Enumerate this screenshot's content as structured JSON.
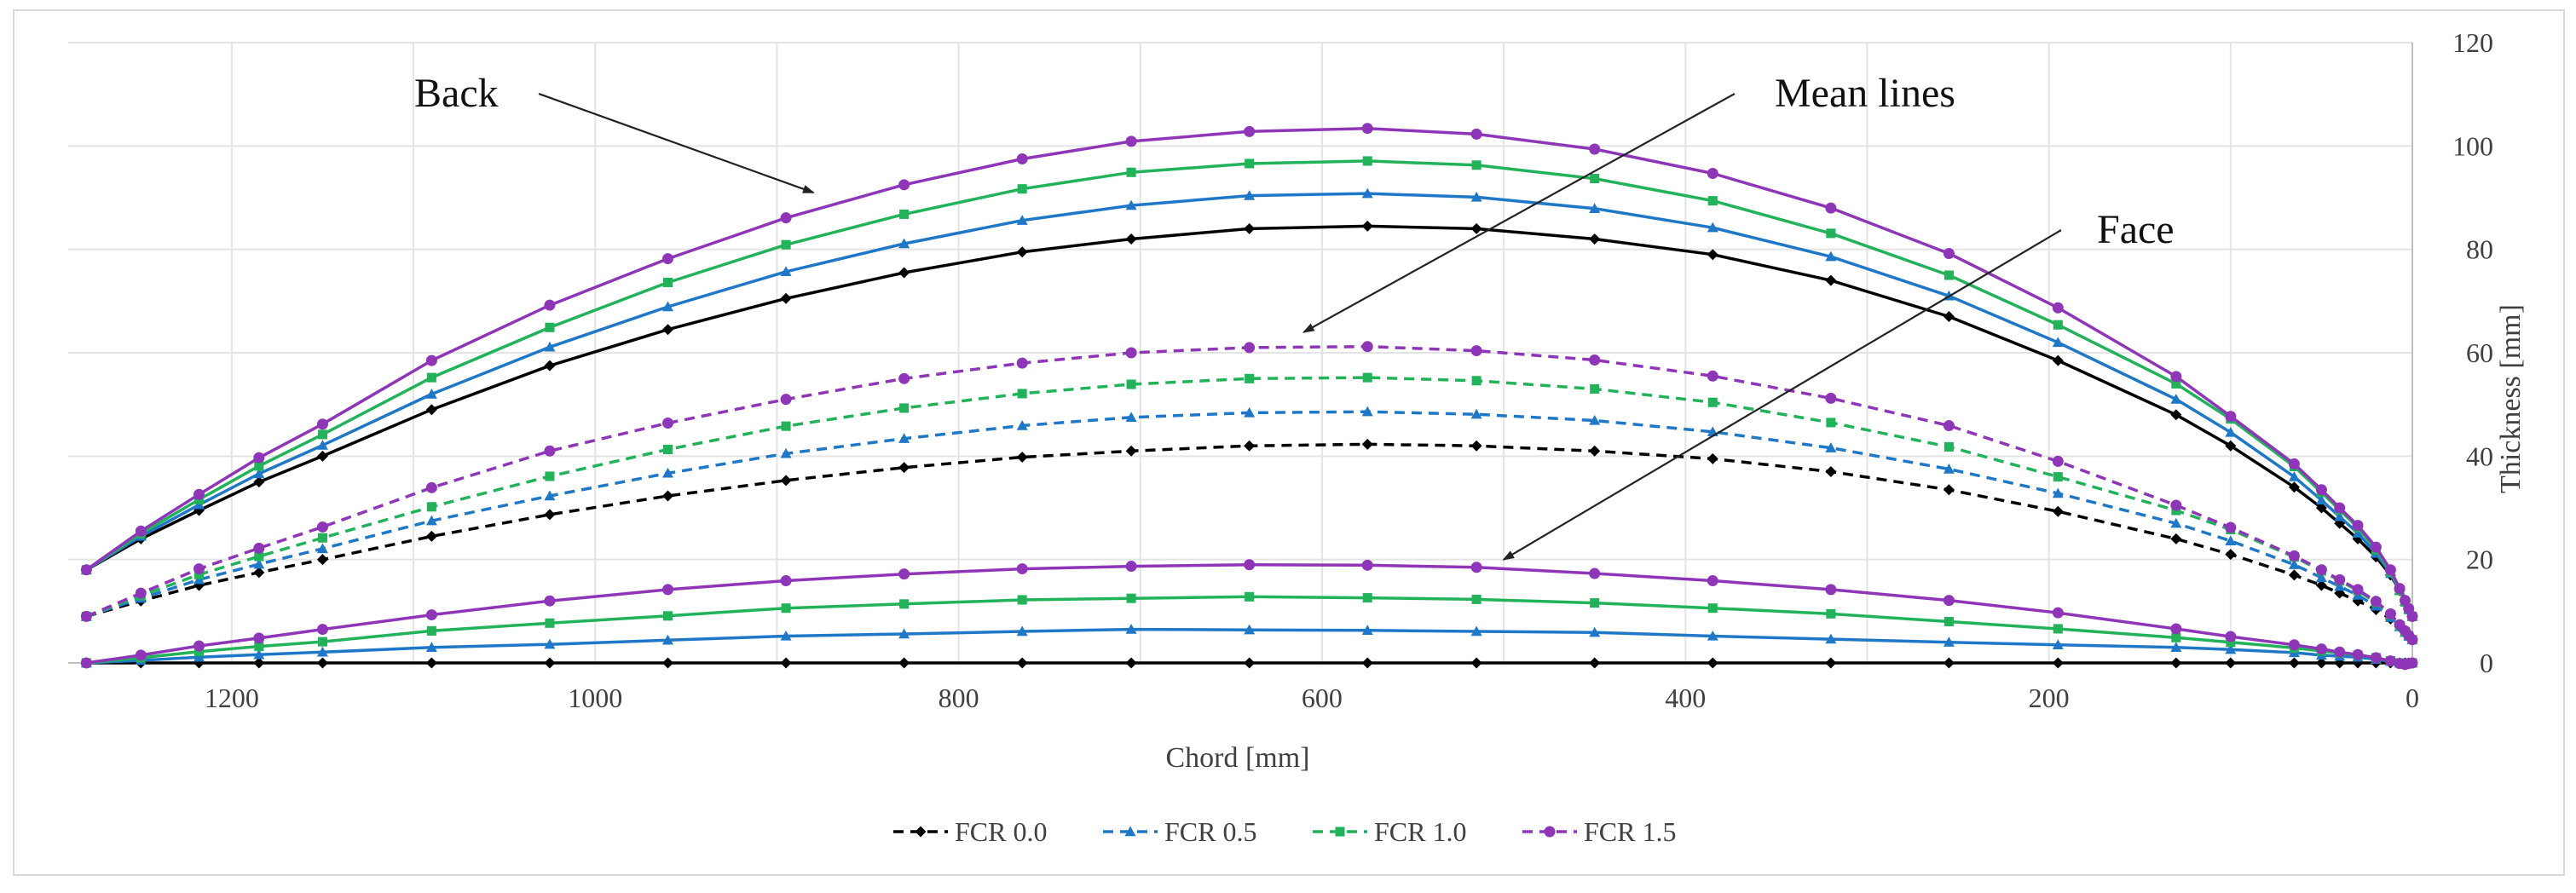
{
  "chart_data": {
    "type": "line",
    "title": "",
    "xlabel": "Chord [mm]",
    "ylabel": "Thickness [mm]",
    "xlim": [
      1290,
      0
    ],
    "ylim": [
      0,
      120
    ],
    "x_reversed": true,
    "y_axis_side": "right",
    "grid": "vertical and horizontal",
    "xticks": [
      1200,
      1000,
      800,
      600,
      400,
      200,
      0
    ],
    "yticks": [
      0,
      20,
      40,
      60,
      80,
      100,
      120
    ],
    "legend": {
      "position": "bottom",
      "entries": [
        "FCR 0.0",
        "FCR 0.5",
        "FCR 1.0",
        "FCR 1.5"
      ]
    },
    "annotations": [
      {
        "text": "Back",
        "target_x": 880,
        "target_y": 91
      },
      {
        "text": "Mean lines",
        "target_x": 610,
        "target_y": 64
      },
      {
        "text": "Face",
        "target_x": 500,
        "target_y": 20
      }
    ],
    "x": [
      1280,
      1250,
      1218,
      1185,
      1150,
      1090,
      1025,
      960,
      895,
      830,
      765,
      705,
      640,
      575,
      515,
      450,
      385,
      320,
      255,
      195,
      130,
      100,
      65,
      50,
      40,
      30,
      20,
      12,
      7,
      4,
      2,
      0
    ],
    "series": [
      {
        "name": "FCR 0.0",
        "color": "#000000",
        "marker": "diamond",
        "back": [
          18,
          24,
          29.5,
          35,
          40,
          49,
          57.5,
          64.5,
          70.5,
          75.5,
          79.5,
          82,
          84,
          84.5,
          84,
          82,
          79,
          74,
          67,
          58.5,
          48,
          42,
          34,
          30,
          27,
          24,
          20.5,
          17,
          14,
          12,
          10.5,
          9
        ],
        "mean": [
          9,
          12,
          15,
          17.5,
          20,
          24.5,
          28.7,
          32.3,
          35.3,
          37.8,
          39.8,
          41,
          42,
          42.3,
          42,
          41,
          39.5,
          37,
          33.5,
          29.3,
          24,
          21,
          17,
          15,
          13.5,
          12,
          10.3,
          8.5,
          7,
          6,
          5.3,
          4.5
        ],
        "face": [
          0,
          0,
          0,
          0,
          0,
          0,
          0,
          0,
          0,
          0,
          0,
          0,
          0,
          0,
          0,
          0,
          0,
          0,
          0,
          0,
          0,
          0,
          0,
          0,
          0,
          0,
          0,
          0,
          0,
          0,
          0,
          0
        ]
      },
      {
        "name": "FCR 0.5",
        "color": "#1f77c8",
        "marker": "triangle",
        "back": [
          18,
          24.5,
          30.6,
          36.6,
          42.1,
          52,
          61.1,
          68.9,
          75.7,
          81.1,
          85.6,
          88.5,
          90.4,
          90.8,
          90.1,
          87.9,
          84.2,
          78.6,
          71,
          62,
          51,
          44.6,
          36,
          31.5,
          28.3,
          25.1,
          21.2,
          17.3,
          14,
          11.9,
          10.4,
          9
        ],
        "mean": [
          9,
          12.5,
          16.1,
          19.1,
          22.1,
          27.5,
          32.3,
          36.7,
          40.5,
          43.4,
          45.9,
          47.5,
          48.4,
          48.6,
          48.1,
          46.9,
          44.7,
          41.6,
          37.5,
          32.8,
          27,
          23.6,
          19,
          16.5,
          14.8,
          13.1,
          11,
          8.8,
          7,
          5.9,
          5.2,
          4.5
        ],
        "face": [
          0,
          0.5,
          1.1,
          1.6,
          2.1,
          3,
          3.6,
          4.4,
          5.2,
          5.6,
          6.1,
          6.5,
          6.4,
          6.3,
          6.1,
          5.9,
          5.2,
          4.6,
          4,
          3.5,
          3,
          2.6,
          2,
          1.5,
          1.3,
          1.1,
          0.7,
          0.3,
          0,
          -0.1,
          -0.1,
          0
        ]
      },
      {
        "name": "FCR 1.0",
        "color": "#22b35a",
        "marker": "square",
        "back": [
          18,
          25,
          31.6,
          38.1,
          44.2,
          55.2,
          64.9,
          73.6,
          80.9,
          86.8,
          91.7,
          94.9,
          96.6,
          97.1,
          96.3,
          93.7,
          89.4,
          83.1,
          75,
          65.4,
          54,
          47.2,
          38,
          33,
          29.6,
          26.2,
          21.9,
          17.6,
          14,
          11.8,
          10.3,
          9
        ],
        "mean": [
          9,
          13,
          17.1,
          20.6,
          24.2,
          30.2,
          36.1,
          41.3,
          45.8,
          49.3,
          52.1,
          53.9,
          55,
          55.2,
          54.6,
          53,
          50.4,
          46.5,
          41.8,
          36,
          29.5,
          25.8,
          20.5,
          17.8,
          15.9,
          14,
          11.7,
          9.3,
          7.2,
          6,
          5.2,
          4.5
        ],
        "face": [
          0,
          1,
          2.2,
          3.2,
          4.1,
          6.2,
          7.7,
          9.1,
          10.6,
          11.4,
          12.2,
          12.5,
          12.8,
          12.6,
          12.3,
          11.6,
          10.6,
          9.5,
          8,
          6.6,
          4.9,
          4,
          2.9,
          2.3,
          1.9,
          1.5,
          1,
          0.4,
          0,
          -0.2,
          -0.1,
          0
        ]
      },
      {
        "name": "FCR 1.5",
        "color": "#8e35b8",
        "marker": "circle",
        "back": [
          18,
          25.5,
          32.6,
          39.7,
          46.2,
          58.5,
          69.2,
          78.2,
          86.1,
          92.5,
          97.5,
          100.9,
          102.8,
          103.4,
          102.3,
          99.4,
          94.7,
          88,
          79.2,
          68.7,
          55.4,
          47.7,
          38.5,
          33.5,
          30,
          26.6,
          22.4,
          18,
          14.4,
          12.1,
          10.5,
          9
        ],
        "mean": [
          9,
          13.5,
          18.2,
          22.2,
          26.3,
          33.9,
          41,
          46.4,
          51,
          55,
          58,
          60,
          61,
          61.2,
          60.4,
          58.6,
          55.5,
          51.2,
          45.9,
          39,
          30.5,
          26.2,
          20.7,
          18,
          16.1,
          14.2,
          11.9,
          9.5,
          7.4,
          6.2,
          5.3,
          4.5
        ],
        "face": [
          0,
          1.5,
          3.3,
          4.8,
          6.5,
          9.3,
          12,
          14.2,
          15.9,
          17.2,
          18.2,
          18.7,
          19,
          18.9,
          18.5,
          17.3,
          15.9,
          14.2,
          12.1,
          9.7,
          6.6,
          5.1,
          3.5,
          2.7,
          2.1,
          1.6,
          1,
          0.4,
          -0.1,
          -0.3,
          -0.1,
          0
        ]
      }
    ]
  }
}
